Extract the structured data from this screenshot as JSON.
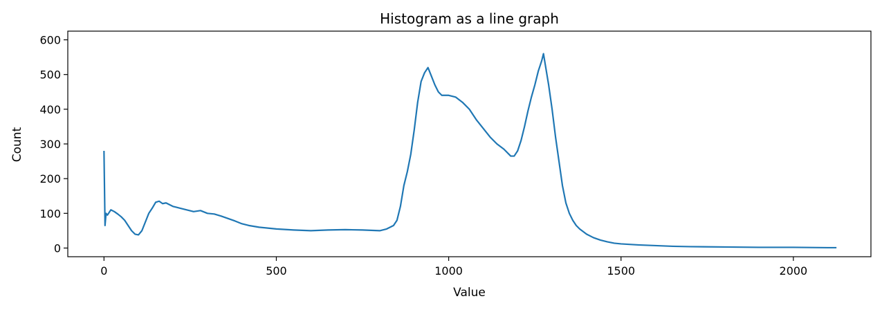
{
  "chart_data": {
    "type": "line",
    "title": "Histogram as a line graph",
    "xlabel": "Value",
    "ylabel": "Count",
    "xlim": [
      -105,
      2225
    ],
    "ylim": [
      -25,
      625
    ],
    "xticks": [
      0,
      500,
      1000,
      1500,
      2000
    ],
    "xtick_labels": [
      "0",
      "500",
      "1000",
      "1500",
      "2000"
    ],
    "yticks": [
      0,
      100,
      200,
      300,
      400,
      500,
      600
    ],
    "ytick_labels": [
      "0",
      "100",
      "200",
      "300",
      "400",
      "500",
      "600"
    ],
    "grid": false,
    "series": [
      {
        "color": "#1f77b4",
        "x": [
          0,
          3,
          6,
          10,
          20,
          30,
          40,
          50,
          60,
          70,
          80,
          90,
          100,
          110,
          120,
          130,
          140,
          150,
          160,
          170,
          180,
          190,
          200,
          220,
          240,
          260,
          280,
          300,
          320,
          340,
          360,
          380,
          400,
          420,
          450,
          480,
          500,
          550,
          600,
          650,
          700,
          750,
          800,
          820,
          840,
          850,
          860,
          870,
          880,
          890,
          900,
          910,
          920,
          930,
          940,
          950,
          960,
          970,
          980,
          1000,
          1020,
          1040,
          1060,
          1080,
          1100,
          1120,
          1140,
          1160,
          1180,
          1190,
          1200,
          1210,
          1220,
          1230,
          1240,
          1250,
          1260,
          1270,
          1275,
          1280,
          1290,
          1300,
          1310,
          1320,
          1330,
          1340,
          1350,
          1360,
          1370,
          1380,
          1400,
          1420,
          1440,
          1460,
          1480,
          1500,
          1550,
          1600,
          1650,
          1700,
          1800,
          1900,
          2000,
          2100,
          2125
        ],
        "y": [
          280,
          65,
          100,
          95,
          110,
          105,
          98,
          90,
          80,
          65,
          50,
          40,
          38,
          50,
          75,
          100,
          115,
          132,
          135,
          128,
          130,
          125,
          120,
          115,
          110,
          105,
          108,
          100,
          98,
          92,
          85,
          78,
          70,
          65,
          60,
          57,
          55,
          52,
          50,
          52,
          53,
          52,
          50,
          55,
          65,
          80,
          120,
          180,
          220,
          270,
          340,
          420,
          480,
          505,
          520,
          495,
          470,
          450,
          440,
          440,
          435,
          420,
          400,
          370,
          345,
          320,
          300,
          285,
          265,
          265,
          280,
          310,
          350,
          395,
          435,
          470,
          510,
          540,
          560,
          530,
          470,
          400,
          320,
          250,
          180,
          130,
          100,
          80,
          65,
          55,
          40,
          30,
          23,
          18,
          14,
          12,
          9,
          7,
          5,
          4,
          3,
          2,
          2,
          1,
          1
        ]
      }
    ]
  }
}
